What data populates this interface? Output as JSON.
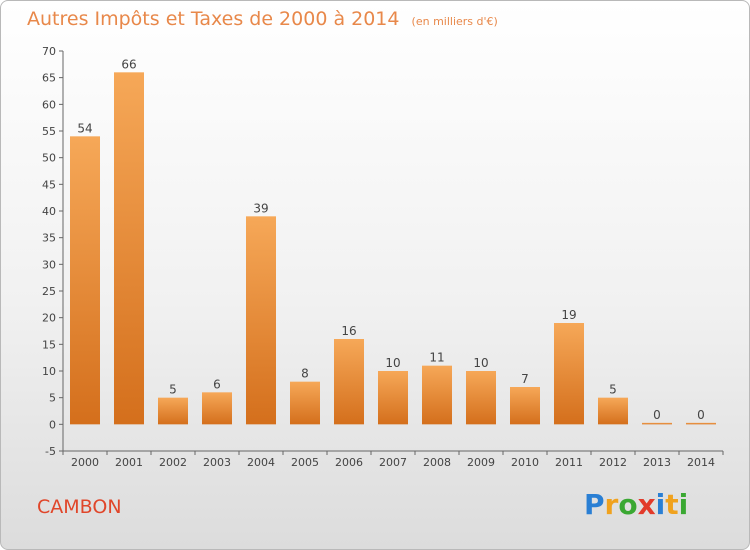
{
  "title": {
    "main": "Autres Impôts et Taxes de 2000 à 2014",
    "unit": "(en milliers d'€)"
  },
  "commune": "CAMBON",
  "brand": {
    "letters": [
      "P",
      "r",
      "o",
      "x",
      "i",
      "t",
      "i"
    ],
    "colors": [
      "#2a7fd4",
      "#f0a21e",
      "#3aa832",
      "#e23a2a",
      "#2a7fd4",
      "#f0a21e",
      "#3aa832"
    ]
  },
  "colors": {
    "title": "#e8884a",
    "commune": "#e0462a",
    "bar_top": "#f6a858",
    "bar_bottom": "#d46f1c",
    "axis_text": "#444444"
  },
  "chart_data": {
    "type": "bar",
    "categories": [
      "2000",
      "2001",
      "2002",
      "2003",
      "2004",
      "2005",
      "2006",
      "2007",
      "2008",
      "2009",
      "2010",
      "2011",
      "2012",
      "2013",
      "2014"
    ],
    "values": [
      54,
      66,
      5,
      6,
      39,
      8,
      16,
      10,
      11,
      10,
      7,
      19,
      5,
      0,
      0
    ],
    "ylim": [
      -5,
      70
    ],
    "yticks": [
      -5,
      0,
      5,
      10,
      15,
      20,
      25,
      30,
      35,
      40,
      45,
      50,
      55,
      60,
      65,
      70
    ],
    "grid": false,
    "data_labels": true
  }
}
